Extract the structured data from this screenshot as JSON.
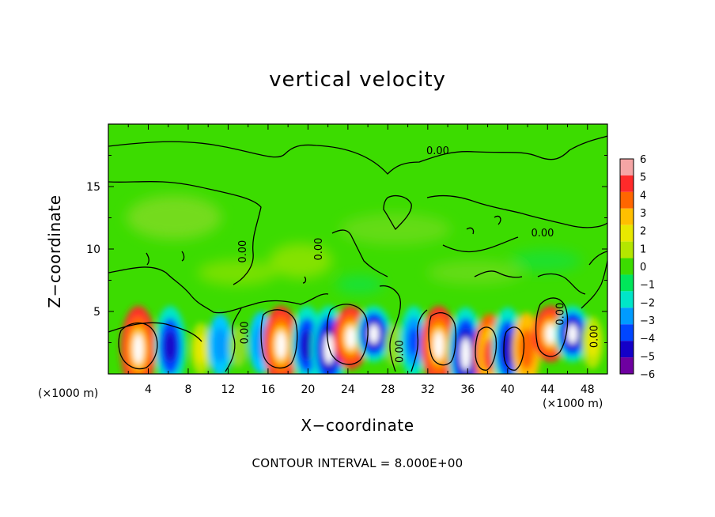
{
  "chart_data": {
    "type": "heatmap",
    "title": "vertical velocity",
    "xlabel": "X−coordinate",
    "ylabel": "Z−coordinate",
    "x_unit_left": "(×1000 m)",
    "x_unit_right": "(×1000 m)",
    "contour_interval_text": "CONTOUR INTERVAL = 8.000E+00",
    "xlim": [
      0,
      50
    ],
    "ylim": [
      0,
      20
    ],
    "x_ticks": [
      4,
      8,
      12,
      16,
      20,
      24,
      28,
      32,
      36,
      40,
      44,
      48
    ],
    "y_ticks": [
      5,
      10,
      15
    ],
    "contour_labels": [
      {
        "text": "0.00",
        "x": 33,
        "y": 17.6
      },
      {
        "text": "0.00",
        "x": 43.5,
        "y": 11.0
      },
      {
        "text": "0.00",
        "x": 13.8,
        "y": 9.8
      },
      {
        "text": "0.00",
        "x": 21.4,
        "y": 10.0
      },
      {
        "text": "0.00",
        "x": 14.0,
        "y": 3.3
      },
      {
        "text": "0.00",
        "x": 29.5,
        "y": 1.8
      },
      {
        "text": "0.00",
        "x": 45.6,
        "y": 4.8
      },
      {
        "text": "0.00",
        "x": 49.0,
        "y": 3.0
      }
    ],
    "colorbar": {
      "labels": [
        "6",
        "5",
        "4",
        "3",
        "2",
        "1",
        "0",
        "−1",
        "−2",
        "−3",
        "−4",
        "−5",
        "−6"
      ],
      "colors": [
        "#f5a5a5",
        "#ff2a2a",
        "#ff6600",
        "#ffbf00",
        "#e8e800",
        "#b4e600",
        "#3cdc00",
        "#00e65a",
        "#00e6c8",
        "#009bff",
        "#0046ff",
        "#1400c8",
        "#6e00a0"
      ]
    },
    "cells": [
      {
        "x": 3.0,
        "y": 2.0,
        "v": 6
      },
      {
        "x": 6.2,
        "y": 2.2,
        "v": -5
      },
      {
        "x": 9.3,
        "y": 2.0,
        "v": 2
      },
      {
        "x": 11.2,
        "y": 2.3,
        "v": -3
      },
      {
        "x": 13.0,
        "y": 2.2,
        "v": 1
      },
      {
        "x": 15.3,
        "y": 2.5,
        "v": -3
      },
      {
        "x": 17.3,
        "y": 2.3,
        "v": 6
      },
      {
        "x": 19.9,
        "y": 2.3,
        "v": -5
      },
      {
        "x": 22.1,
        "y": 2.0,
        "v": -6
      },
      {
        "x": 24.3,
        "y": 2.9,
        "v": 6
      },
      {
        "x": 26.6,
        "y": 3.2,
        "v": -6
      },
      {
        "x": 28.6,
        "y": 2.3,
        "v": 1
      },
      {
        "x": 30.6,
        "y": 2.6,
        "v": -4
      },
      {
        "x": 33.1,
        "y": 2.3,
        "v": 6
      },
      {
        "x": 35.8,
        "y": 1.6,
        "v": -6
      },
      {
        "x": 38.2,
        "y": 1.5,
        "v": 5
      },
      {
        "x": 40.0,
        "y": 2.0,
        "v": -5
      },
      {
        "x": 41.9,
        "y": 2.0,
        "v": 4
      },
      {
        "x": 44.3,
        "y": 3.2,
        "v": 6
      },
      {
        "x": 46.5,
        "y": 3.2,
        "v": -6
      },
      {
        "x": 48.5,
        "y": 2.5,
        "v": 2
      }
    ]
  }
}
